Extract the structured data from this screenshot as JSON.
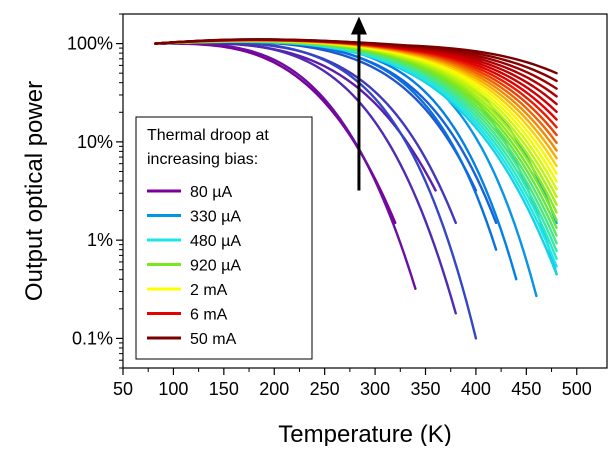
{
  "chart_data": {
    "type": "line",
    "title": "",
    "xlabel": "Temperature (K)",
    "ylabel": "Output optical power",
    "xlim": [
      50,
      530
    ],
    "ylim": [
      0.05,
      200
    ],
    "yscale": "log",
    "grid": false,
    "x_ticks": [
      50,
      100,
      150,
      200,
      250,
      300,
      350,
      400,
      450,
      500
    ],
    "x_tick_labels": [
      "50",
      "100",
      "150",
      "200",
      "250",
      "300",
      "350",
      "400",
      "450",
      "500"
    ],
    "y_ticks": [
      0.1,
      1,
      10,
      100
    ],
    "y_tick_labels": [
      "0.1%",
      "1%",
      "10%",
      "100%"
    ],
    "legend": {
      "placement": "lower-left",
      "title_lines": [
        "Thermal droop at",
        "increasing bias:"
      ],
      "entries": [
        {
          "label": "80 µA",
          "color": "#7a0099"
        },
        {
          "label": "330 µA",
          "color": "#0096e6"
        },
        {
          "label": "480 µA",
          "color": "#1ee6e6"
        },
        {
          "label": "920 µA",
          "color": "#7ae61e"
        },
        {
          "label": "2 mA",
          "color": "#ffff00"
        },
        {
          "label": "6 mA",
          "color": "#e60000"
        },
        {
          "label": "50 mA",
          "color": "#780000"
        }
      ]
    },
    "annotation": {
      "type": "arrow",
      "direction": "up",
      "meaning": "increasing bias",
      "x": 284,
      "y_from": 3.2,
      "y_to": 180
    },
    "family": {
      "count": 40,
      "x_start": 82,
      "y_start": 100,
      "end_temperatures_low_bias": [
        320,
        340,
        360,
        380,
        400,
        420,
        440,
        460,
        480
      ],
      "end_values_low_bias": [
        1.5,
        0.32,
        3.2,
        0.18,
        1.5,
        0.1,
        3.2,
        1.5,
        0.8,
        0.4,
        0.27,
        1.5,
        0.45
      ],
      "end_temperature_high_bias": 480,
      "end_value_range_high_bias": [
        0.45,
        50
      ]
    }
  }
}
